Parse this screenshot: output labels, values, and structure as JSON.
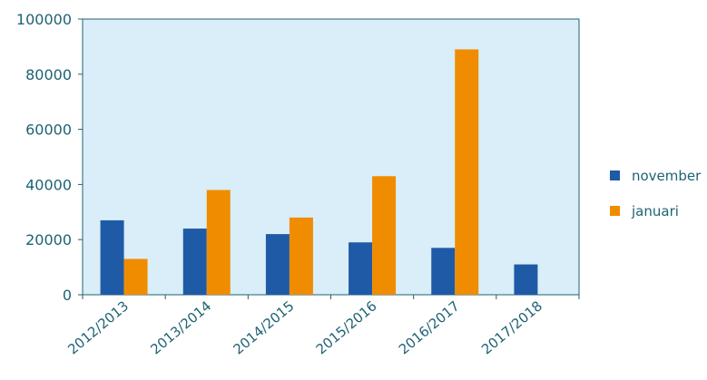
{
  "chart_data": {
    "type": "bar",
    "title": "",
    "xlabel": "",
    "ylabel": "",
    "categories": [
      "2012/2013",
      "2013/2014",
      "2014/2015",
      "2015/2016",
      "2016/2017",
      "2017/2018"
    ],
    "series": [
      {
        "name": "november",
        "color": "#1f5aa6",
        "values": [
          27000,
          24000,
          22000,
          19000,
          17000,
          11000
        ]
      },
      {
        "name": "januari",
        "color": "#f08c00",
        "values": [
          13000,
          38000,
          28000,
          43000,
          89000,
          null
        ]
      }
    ],
    "ylim": [
      0,
      100000
    ],
    "yticks": [
      0,
      20000,
      40000,
      60000,
      80000,
      100000
    ],
    "ytick_labels": [
      "0",
      "20000",
      "40000",
      "60000",
      "80000",
      "100000"
    ],
    "grid": false,
    "legend": "right",
    "plot_background": "#d9eef8",
    "axis_color": "#1e6274"
  }
}
